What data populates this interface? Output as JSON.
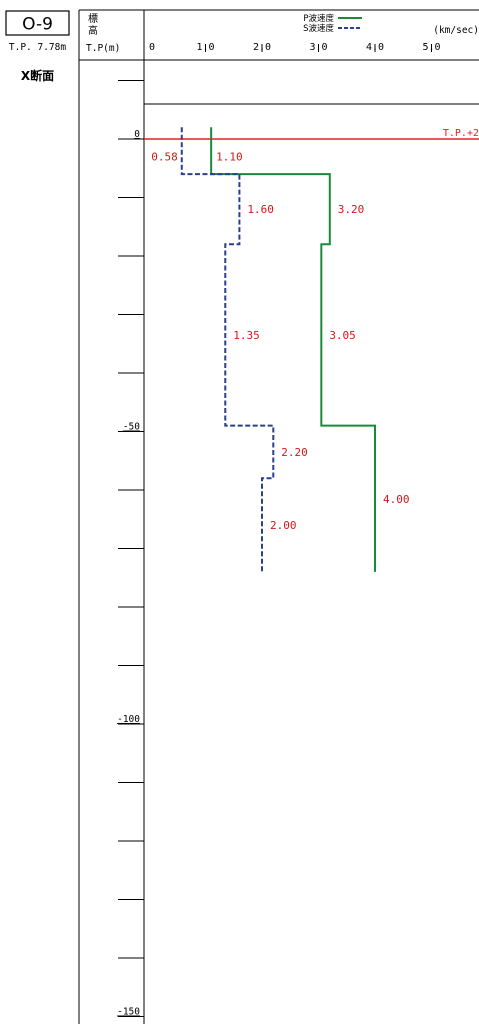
{
  "header": {
    "borehole_id": "O-9",
    "ground_elevation": "T.P. 7.78m",
    "section_label": "X断面",
    "elevation_col_label": [
      "標",
      "高"
    ],
    "elevation_unit": "T.P(m)",
    "legend": [
      {
        "label": "P波速度",
        "color": "#1a8a3a",
        "dashed": false
      },
      {
        "label": "S波速度",
        "color": "#2b3f8c",
        "dashed": true
      }
    ],
    "unit_label": "(km/sec)",
    "ref_line_label": "T.P.+2"
  },
  "chart_data": {
    "type": "line",
    "x_ticks": [
      "0",
      "1.0",
      "2.0",
      "3.0",
      "4.0",
      "5.0"
    ],
    "xlim": [
      0,
      5.9
    ],
    "ylim": [
      -150,
      17
    ],
    "y_labels": [
      0,
      -50,
      -100,
      -150
    ],
    "y_minor_step": 10,
    "reference_line": {
      "y": 0,
      "color": "#e02020"
    },
    "series": [
      {
        "name": "P波速度",
        "color": "#1a8a3a",
        "dashed": false,
        "layers": [
          {
            "top": 2,
            "bottom": -6,
            "value": 1.1,
            "label": "1.10"
          },
          {
            "top": -6,
            "bottom": -18,
            "value": 3.2,
            "label": "3.20"
          },
          {
            "top": -18,
            "bottom": -49,
            "value": 3.05,
            "label": "3.05"
          },
          {
            "top": -49,
            "bottom": -74,
            "value": 4.0,
            "label": "4.00"
          }
        ]
      },
      {
        "name": "S波速度",
        "color": "#2b3f8c",
        "dashed": true,
        "layers": [
          {
            "top": 2,
            "bottom": -6,
            "value": 0.58,
            "label": "0.58"
          },
          {
            "top": -6,
            "bottom": -18,
            "value": 1.6,
            "label": "1.60"
          },
          {
            "top": -18,
            "bottom": -49,
            "value": 1.35,
            "label": "1.35"
          },
          {
            "top": -49,
            "bottom": -58,
            "value": 2.2,
            "label": "2.20"
          },
          {
            "top": -58,
            "bottom": -74,
            "value": 2.0,
            "label": "2.00"
          }
        ]
      }
    ]
  }
}
